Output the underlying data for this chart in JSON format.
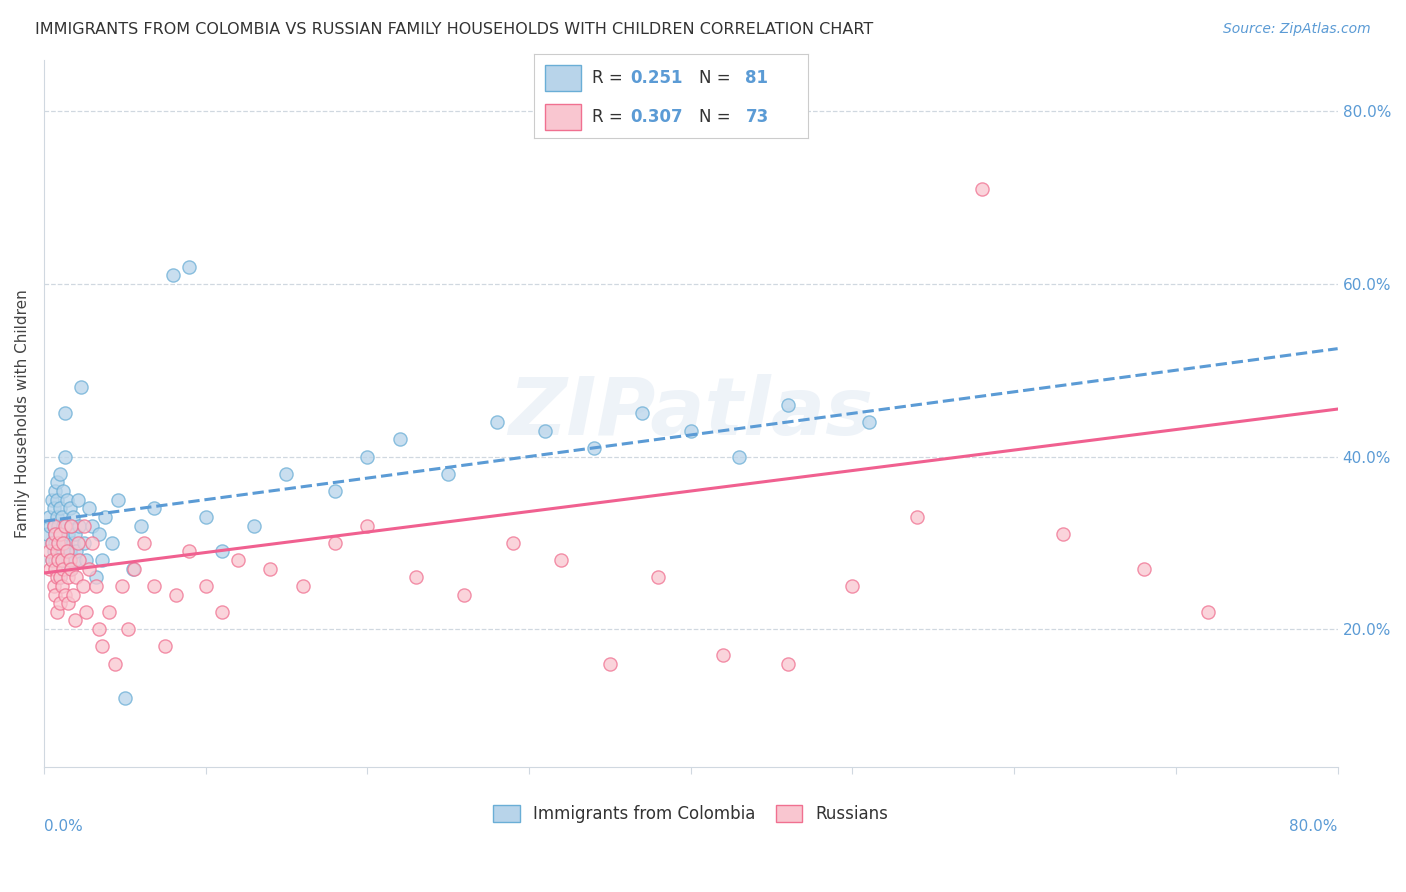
{
  "title": "IMMIGRANTS FROM COLOMBIA VS RUSSIAN FAMILY HOUSEHOLDS WITH CHILDREN CORRELATION CHART",
  "source": "Source: ZipAtlas.com",
  "ylabel": "Family Households with Children",
  "colombia_R": 0.251,
  "colombia_N": 81,
  "russian_R": 0.307,
  "russian_N": 73,
  "color_colombia_fill": "#b8d4ea",
  "color_colombia_edge": "#6aaed6",
  "color_russian_fill": "#f9c6d0",
  "color_russian_edge": "#f07090",
  "color_colombia_line": "#5b9bd5",
  "color_russian_line": "#f06090",
  "bg_color": "#ffffff",
  "grid_color": "#d0d8e0",
  "watermark": "ZIPatlas",
  "xlim": [
    0.0,
    0.8
  ],
  "ylim": [
    0.04,
    0.86
  ],
  "colombia_line_x": [
    0.0,
    0.8
  ],
  "colombia_line_y": [
    0.325,
    0.525
  ],
  "russian_line_x": [
    0.0,
    0.8
  ],
  "russian_line_y": [
    0.265,
    0.455
  ],
  "colombia_x": [
    0.002,
    0.003,
    0.004,
    0.005,
    0.005,
    0.005,
    0.006,
    0.006,
    0.006,
    0.007,
    0.007,
    0.007,
    0.007,
    0.008,
    0.008,
    0.008,
    0.008,
    0.009,
    0.009,
    0.009,
    0.01,
    0.01,
    0.01,
    0.01,
    0.01,
    0.011,
    0.011,
    0.011,
    0.012,
    0.012,
    0.012,
    0.013,
    0.013,
    0.014,
    0.014,
    0.015,
    0.015,
    0.016,
    0.016,
    0.017,
    0.017,
    0.018,
    0.018,
    0.019,
    0.019,
    0.02,
    0.021,
    0.022,
    0.023,
    0.025,
    0.026,
    0.028,
    0.03,
    0.032,
    0.034,
    0.036,
    0.038,
    0.042,
    0.046,
    0.05,
    0.055,
    0.06,
    0.068,
    0.08,
    0.09,
    0.1,
    0.11,
    0.13,
    0.15,
    0.18,
    0.2,
    0.22,
    0.25,
    0.28,
    0.31,
    0.34,
    0.37,
    0.4,
    0.43,
    0.46,
    0.51
  ],
  "colombia_y": [
    0.31,
    0.33,
    0.32,
    0.3,
    0.35,
    0.28,
    0.34,
    0.32,
    0.29,
    0.36,
    0.31,
    0.3,
    0.28,
    0.33,
    0.37,
    0.35,
    0.29,
    0.32,
    0.3,
    0.27,
    0.34,
    0.31,
    0.38,
    0.29,
    0.26,
    0.33,
    0.3,
    0.28,
    0.36,
    0.32,
    0.29,
    0.4,
    0.45,
    0.3,
    0.35,
    0.28,
    0.31,
    0.29,
    0.34,
    0.27,
    0.32,
    0.3,
    0.33,
    0.28,
    0.31,
    0.29,
    0.35,
    0.32,
    0.48,
    0.3,
    0.28,
    0.34,
    0.32,
    0.26,
    0.31,
    0.28,
    0.33,
    0.3,
    0.35,
    0.12,
    0.27,
    0.32,
    0.34,
    0.61,
    0.62,
    0.33,
    0.29,
    0.32,
    0.38,
    0.36,
    0.4,
    0.42,
    0.38,
    0.44,
    0.43,
    0.41,
    0.45,
    0.43,
    0.4,
    0.46,
    0.44
  ],
  "russian_x": [
    0.003,
    0.004,
    0.005,
    0.005,
    0.006,
    0.006,
    0.007,
    0.007,
    0.007,
    0.008,
    0.008,
    0.008,
    0.009,
    0.009,
    0.01,
    0.01,
    0.01,
    0.011,
    0.011,
    0.012,
    0.012,
    0.013,
    0.013,
    0.014,
    0.015,
    0.015,
    0.016,
    0.017,
    0.017,
    0.018,
    0.019,
    0.02,
    0.021,
    0.022,
    0.024,
    0.025,
    0.026,
    0.028,
    0.03,
    0.032,
    0.034,
    0.036,
    0.04,
    0.044,
    0.048,
    0.052,
    0.056,
    0.062,
    0.068,
    0.075,
    0.082,
    0.09,
    0.1,
    0.11,
    0.12,
    0.14,
    0.16,
    0.18,
    0.2,
    0.23,
    0.26,
    0.29,
    0.32,
    0.35,
    0.38,
    0.42,
    0.46,
    0.5,
    0.54,
    0.58,
    0.63,
    0.68,
    0.72
  ],
  "russian_y": [
    0.29,
    0.27,
    0.3,
    0.28,
    0.32,
    0.25,
    0.31,
    0.27,
    0.24,
    0.29,
    0.26,
    0.22,
    0.3,
    0.28,
    0.31,
    0.26,
    0.23,
    0.28,
    0.25,
    0.3,
    0.27,
    0.32,
    0.24,
    0.29,
    0.26,
    0.23,
    0.28,
    0.32,
    0.27,
    0.24,
    0.21,
    0.26,
    0.3,
    0.28,
    0.25,
    0.32,
    0.22,
    0.27,
    0.3,
    0.25,
    0.2,
    0.18,
    0.22,
    0.16,
    0.25,
    0.2,
    0.27,
    0.3,
    0.25,
    0.18,
    0.24,
    0.29,
    0.25,
    0.22,
    0.28,
    0.27,
    0.25,
    0.3,
    0.32,
    0.26,
    0.24,
    0.3,
    0.28,
    0.16,
    0.26,
    0.17,
    0.16,
    0.25,
    0.33,
    0.71,
    0.31,
    0.27,
    0.22
  ]
}
